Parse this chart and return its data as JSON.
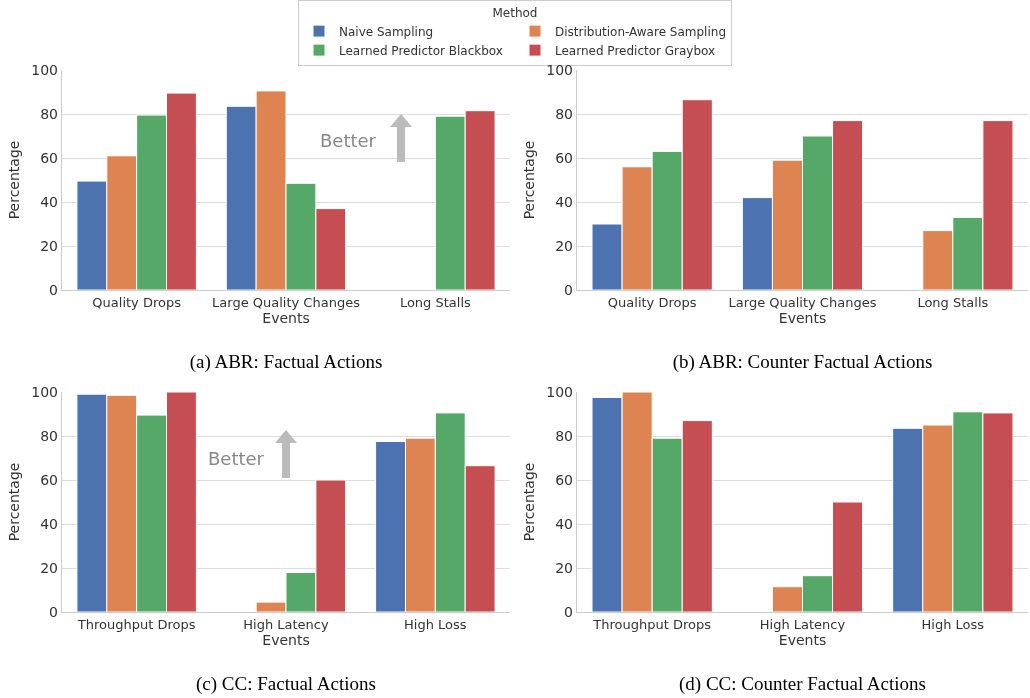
{
  "chart_data": [
    {
      "type": "bar",
      "title": "(a) ABR: Factual Actions",
      "xlabel": "Events",
      "ylabel": "Percentage",
      "legend_title": "Method",
      "legend": "top",
      "categories": [
        "Quality Drops",
        "Large Quality Changes",
        "Long Stalls"
      ],
      "series": [
        {
          "name": "Naive Sampling",
          "color": "#4c72b0",
          "values": [
            49.5,
            83.5,
            null
          ]
        },
        {
          "name": "Distribution-Aware Sampling",
          "color": "#dd8452",
          "values": [
            61,
            90.5,
            null
          ]
        },
        {
          "name": "Learned Predictor Blackbox",
          "color": "#55a868",
          "values": [
            79.5,
            48.5,
            79
          ]
        },
        {
          "name": "Learned Predictor Graybox",
          "color": "#c44e52",
          "values": [
            89.5,
            37,
            81.5
          ]
        }
      ],
      "ylim": [
        0,
        100
      ],
      "yticks": [
        0,
        20,
        40,
        60,
        80,
        100
      ],
      "grid": "y",
      "annotations": [
        "Better"
      ]
    },
    {
      "type": "bar",
      "title": "(b) ABR: Counter Factual Actions",
      "xlabel": "Events",
      "ylabel": "Percentage",
      "categories": [
        "Quality Drops",
        "Large Quality Changes",
        "Long Stalls"
      ],
      "series": [
        {
          "color": "#4c72b0",
          "values": [
            30,
            42,
            null
          ]
        },
        {
          "color": "#dd8452",
          "values": [
            56,
            59,
            27
          ]
        },
        {
          "color": "#55a868",
          "values": [
            63,
            70,
            33
          ]
        },
        {
          "color": "#c44e52",
          "values": [
            86.5,
            77,
            77
          ]
        }
      ],
      "ylim": [
        0,
        100
      ],
      "yticks": [
        0,
        20,
        40,
        60,
        80,
        100
      ],
      "grid": "y"
    },
    {
      "type": "bar",
      "title": "(c) CC: Factual Actions",
      "xlabel": "Events",
      "ylabel": "Percentage",
      "categories": [
        "Throughput Drops",
        "High Latency",
        "High Loss"
      ],
      "series": [
        {
          "color": "#4c72b0",
          "values": [
            99,
            null,
            77.5
          ]
        },
        {
          "color": "#dd8452",
          "values": [
            98.5,
            4.5,
            79
          ]
        },
        {
          "color": "#55a868",
          "values": [
            89.5,
            18,
            90.5
          ]
        },
        {
          "color": "#c44e52",
          "values": [
            100,
            60,
            66.5
          ]
        }
      ],
      "ylim": [
        0,
        100
      ],
      "yticks": [
        0,
        20,
        40,
        60,
        80,
        100
      ],
      "grid": "y",
      "annotations": [
        "Better"
      ]
    },
    {
      "type": "bar",
      "title": "(d) CC: Counter Factual Actions",
      "xlabel": "Events",
      "ylabel": "Percentage",
      "categories": [
        "Throughput Drops",
        "High Latency",
        "High Loss"
      ],
      "series": [
        {
          "color": "#4c72b0",
          "values": [
            97.5,
            null,
            83.5
          ]
        },
        {
          "color": "#dd8452",
          "values": [
            100,
            11.5,
            85
          ]
        },
        {
          "color": "#55a868",
          "values": [
            79,
            16.5,
            91
          ]
        },
        {
          "color": "#c44e52",
          "values": [
            87,
            50,
            90.5
          ]
        }
      ],
      "ylim": [
        0,
        100
      ],
      "yticks": [
        0,
        20,
        40,
        60,
        80,
        100
      ],
      "grid": "y"
    }
  ]
}
